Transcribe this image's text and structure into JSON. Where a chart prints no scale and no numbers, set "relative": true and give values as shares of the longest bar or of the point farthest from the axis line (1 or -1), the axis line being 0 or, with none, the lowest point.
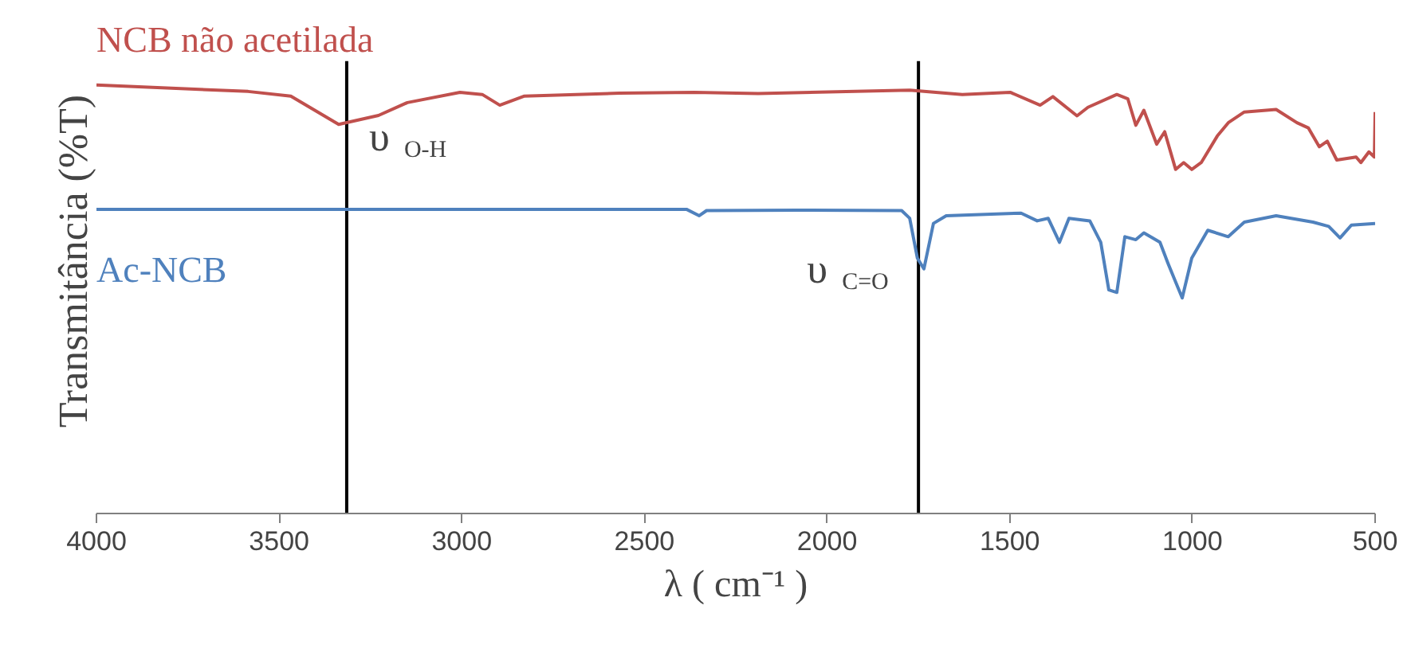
{
  "chart_data": {
    "type": "line",
    "relative": true,
    "xlabel": "λ ( cm⁻¹ )",
    "ylabel": "Transmitância (%T)",
    "xlim": [
      4000,
      500
    ],
    "xticks": [
      4000,
      3500,
      3000,
      2500,
      2000,
      1500,
      1000,
      500
    ],
    "grid": false,
    "line_style": "solid",
    "series": [
      {
        "name": "NCB não acetilada",
        "color": "#c0504d",
        "x": [
          4000,
          3585,
          3468,
          3337,
          3228,
          3149,
          3005,
          2944,
          2896,
          2830,
          2569,
          2364,
          2189,
          1774,
          1630,
          1499,
          1417,
          1382,
          1316,
          1286,
          1207,
          1177,
          1155,
          1133,
          1098,
          1076,
          1046,
          1024,
          1002,
          976,
          932,
          902,
          858,
          771,
          714,
          683,
          653,
          631,
          605,
          552,
          539,
          517,
          502,
          500
        ],
        "values": [
          1.0,
          0.985,
          0.974,
          0.908,
          0.929,
          0.959,
          0.983,
          0.978,
          0.953,
          0.974,
          0.981,
          0.983,
          0.98,
          0.988,
          0.978,
          0.983,
          0.953,
          0.973,
          0.928,
          0.948,
          0.978,
          0.968,
          0.906,
          0.941,
          0.862,
          0.891,
          0.803,
          0.819,
          0.803,
          0.819,
          0.881,
          0.912,
          0.937,
          0.943,
          0.912,
          0.9,
          0.856,
          0.869,
          0.825,
          0.832,
          0.819,
          0.844,
          0.832,
          0.937
        ]
      },
      {
        "name": "Ac-NCB",
        "color": "#4f81bd",
        "x": [
          4000,
          2385,
          2350,
          2330,
          2080,
          1796,
          1774,
          1753,
          1735,
          1709,
          1674,
          1469,
          1425,
          1395,
          1364,
          1338,
          1281,
          1251,
          1229,
          1207,
          1185,
          1155,
          1133,
          1089,
          1067,
          1046,
          1028,
          1002,
          958,
          902,
          858,
          771,
          670,
          627,
          596,
          565,
          500
        ],
        "values": [
          0.71,
          0.71,
          0.695,
          0.707,
          0.708,
          0.707,
          0.689,
          0.596,
          0.571,
          0.677,
          0.695,
          0.701,
          0.683,
          0.689,
          0.633,
          0.689,
          0.683,
          0.633,
          0.522,
          0.516,
          0.646,
          0.639,
          0.655,
          0.633,
          0.584,
          0.54,
          0.503,
          0.596,
          0.661,
          0.646,
          0.68,
          0.695,
          0.68,
          0.67,
          0.643,
          0.673,
          0.677
        ]
      }
    ],
    "ref_lines": [
      {
        "axis": "x",
        "value": 3315,
        "label": "υ$_{O-H}$",
        "color": "#000000",
        "line_style": "solid"
      },
      {
        "axis": "x",
        "value": 1750,
        "label": "υ$_{C=O}$",
        "color": "#000000",
        "line_style": "solid"
      }
    ]
  }
}
